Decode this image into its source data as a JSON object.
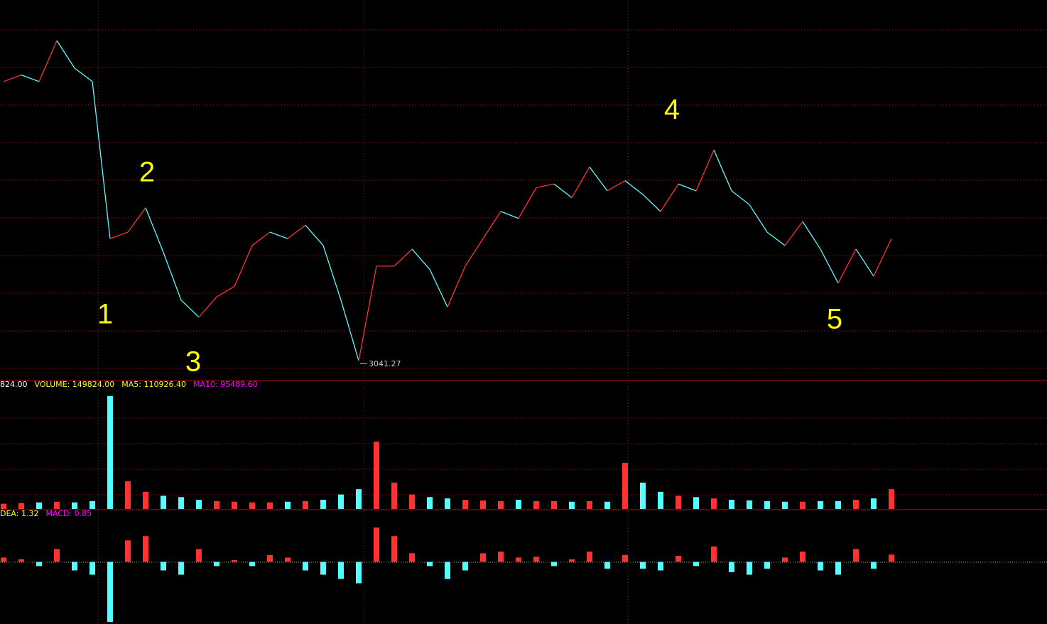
{
  "chart_data": [
    {
      "type": "line",
      "values": [
        3118.4,
        3120.2,
        3118.4,
        3129.7,
        3122.1,
        3118.4,
        3075.0,
        3076.8,
        3083.5,
        3071.2,
        3058.0,
        3053.3,
        3058.9,
        3061.8,
        3073.1,
        3076.8,
        3075.0,
        3078.7,
        3073.1,
        3058.0,
        3041.27,
        3067.4,
        3067.4,
        3072.1,
        3066.5,
        3056.1,
        3067.4,
        3075.0,
        3082.5,
        3080.6,
        3089.1,
        3090.1,
        3086.3,
        3094.8,
        3088.2,
        3091.0,
        3087.2,
        3082.5,
        3090.1,
        3088.2,
        3099.5,
        3088.2,
        3084.4,
        3076.8,
        3073.1,
        3079.7,
        3072.1,
        3062.7,
        3072.1,
        3064.6,
        3075.0
      ],
      "ylim": [
        3036,
        3137
      ],
      "up_color": "#ff3232",
      "down_color": "#54ffff",
      "annotations": [
        "1",
        "2",
        "3",
        "4",
        "5"
      ],
      "low_label": "3041.27"
    },
    {
      "type": "bar",
      "legend": [
        "824.00",
        "VOLUME: 149824.00",
        "MA5: 110926.40",
        "MA10: 95489.60"
      ],
      "legend_colors": [
        "#ffffff",
        "#ffff00",
        "#ffff00",
        "#ff00ff"
      ],
      "values": [
        40000,
        45000,
        50000,
        55000,
        50000,
        60000,
        856000,
        210000,
        130000,
        100000,
        90000,
        70000,
        60000,
        55000,
        50000,
        50000,
        55000,
        60000,
        70000,
        110000,
        150000,
        510000,
        200000,
        110000,
        90000,
        80000,
        70000,
        65000,
        60000,
        70000,
        60000,
        60000,
        55000,
        60000,
        55000,
        350000,
        200000,
        130000,
        100000,
        90000,
        80000,
        70000,
        65000,
        60000,
        55000,
        55000,
        60000,
        60000,
        70000,
        80000,
        149824
      ],
      "ylim": [
        0,
        968000
      ]
    },
    {
      "type": "bar",
      "legend": [
        "DEA: 1.32",
        "MACD: 0.85"
      ],
      "legend_colors": [
        "#ffff00",
        "#ff00ff"
      ],
      "values": [
        0.5,
        0.3,
        -0.5,
        1.5,
        -1,
        -1.5,
        -7,
        2.5,
        3,
        -1,
        -1.5,
        1.5,
        -0.5,
        0.2,
        -0.5,
        0.8,
        0.5,
        -1,
        -1.5,
        -2,
        -2.5,
        4,
        3,
        1,
        -0.5,
        -2,
        -1,
        1,
        1.2,
        0.5,
        0.6,
        -0.5,
        0.3,
        1.2,
        -0.8,
        0.8,
        -0.8,
        -1,
        0.7,
        -0.5,
        1.8,
        -1.2,
        -1.5,
        -0.8,
        0.5,
        1.2,
        -1,
        -1.5,
        1.5,
        -0.8,
        0.85
      ],
      "ylim": [
        -7.25,
        6
      ]
    }
  ]
}
